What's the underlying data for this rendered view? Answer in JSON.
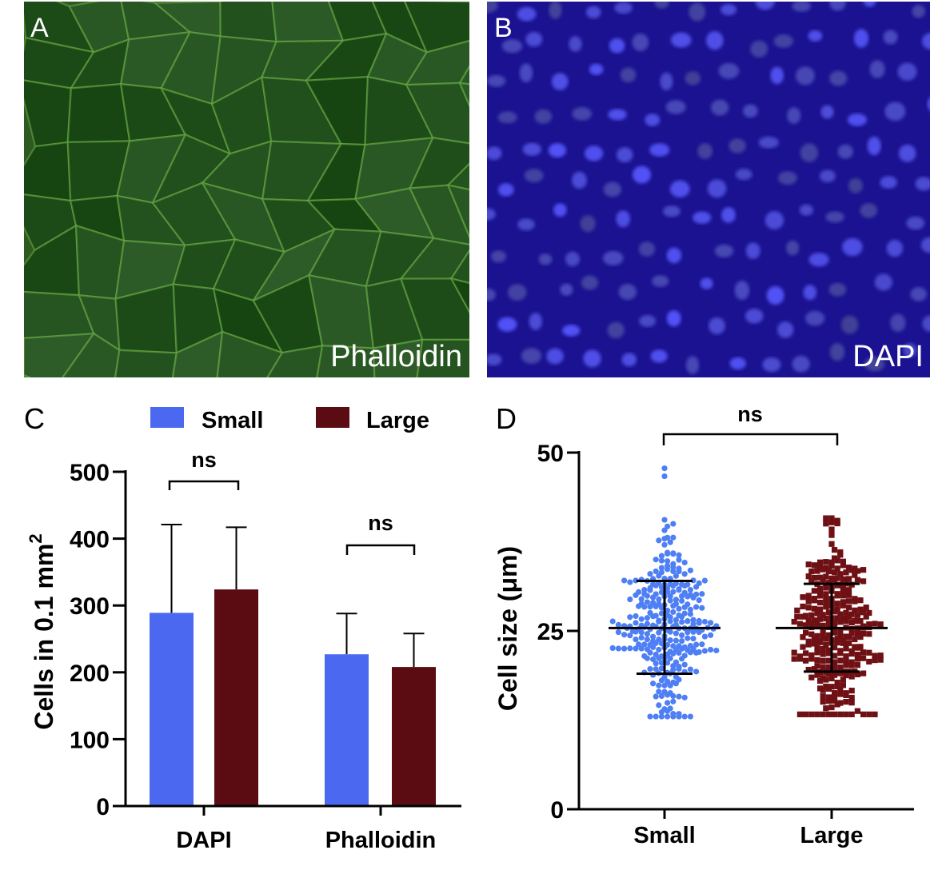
{
  "panels": {
    "A": {
      "letter": "A",
      "stain": "Phalloidin"
    },
    "B": {
      "letter": "B",
      "stain": "DAPI"
    }
  },
  "colors": {
    "small": "#4a69f0",
    "large": "#5a0c12",
    "small_dot": "#4f7ff5",
    "large_dot": "#6e1014"
  },
  "chart_data": [
    {
      "panel": "C",
      "type": "bar",
      "categories": [
        "DAPI",
        "Phalloidin"
      ],
      "series": [
        {
          "name": "Small",
          "values": [
            289,
            227
          ],
          "error_plus": [
            132,
            61
          ]
        },
        {
          "name": "Large",
          "values": [
            324,
            208
          ],
          "error_plus": [
            93,
            50
          ]
        }
      ],
      "ylabel": "Cells in 0.1 mm",
      "ylabel_sup": "2",
      "ylim": [
        0,
        500
      ],
      "yticks": [
        "0",
        "100",
        "200",
        "300",
        "400",
        "500"
      ],
      "legend": [
        "Small",
        "Large"
      ],
      "legend_position": "top",
      "annotations": [
        "ns",
        "ns"
      ]
    },
    {
      "panel": "D",
      "type": "scatter",
      "categories": [
        "Small",
        "Large"
      ],
      "series": [
        {
          "name": "Small",
          "mean": 25.4,
          "sd_low": 19.0,
          "sd_high": 32.0,
          "min": 13.0,
          "max": 47.8,
          "n": 300
        },
        {
          "name": "Large",
          "mean": 25.4,
          "sd_low": 19.3,
          "sd_high": 31.6,
          "min": 13.3,
          "max": 40.8,
          "n": 300
        }
      ],
      "ylabel": "Cell size (μm)",
      "ylim": [
        0,
        50
      ],
      "yticks": [
        "0",
        "25",
        "50"
      ],
      "annotations": [
        "ns"
      ]
    }
  ]
}
